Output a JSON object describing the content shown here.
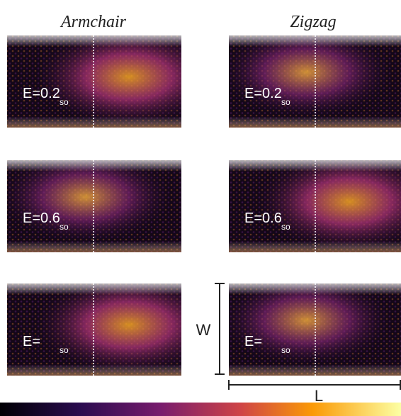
{
  "columns": [
    {
      "title": "Armchair",
      "panels": [
        {
          "label": "E=0.2",
          "subscript": "so"
        },
        {
          "label": "E=0.6",
          "subscript": "so"
        },
        {
          "label": "E=",
          "subscript": "so"
        }
      ]
    },
    {
      "title": "Zigzag",
      "panels": [
        {
          "label": "E=0.2",
          "subscript": "so"
        },
        {
          "label": "E=0.6",
          "subscript": "so"
        },
        {
          "label": "E=",
          "subscript": "so"
        }
      ]
    }
  ],
  "width_label": "W",
  "length_label": "L"
}
